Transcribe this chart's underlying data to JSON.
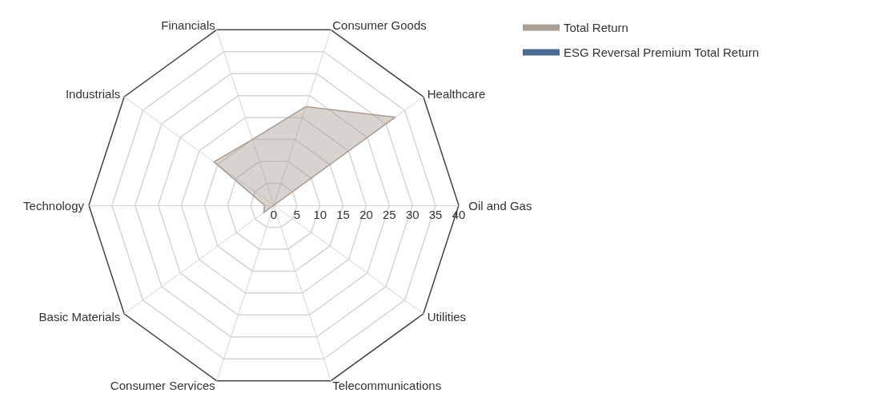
{
  "chart_data": {
    "type": "radar",
    "categories": [
      "Consumer Goods",
      "Healthcare",
      "Oil and Gas",
      "Utilities",
      "Telecommunications",
      "Consumer Services",
      "Basic Materials",
      "Technology",
      "Industrials",
      "Financials"
    ],
    "series": [
      {
        "name": "Total Return",
        "color": "#a89e95",
        "values": [
          22.5,
          32.5,
          0,
          0,
          0,
          0,
          2.7,
          2,
          16,
          15
        ]
      },
      {
        "name": "ESG Reversal Premium Total Return",
        "color": "#4a6a90",
        "values": [
          null,
          null,
          null,
          null,
          null,
          null,
          null,
          null,
          null,
          null
        ]
      }
    ],
    "ylim": [
      0,
      40
    ],
    "yticks": [
      0,
      5,
      10,
      15,
      20,
      25,
      30,
      35,
      40
    ],
    "legend": "top right"
  }
}
